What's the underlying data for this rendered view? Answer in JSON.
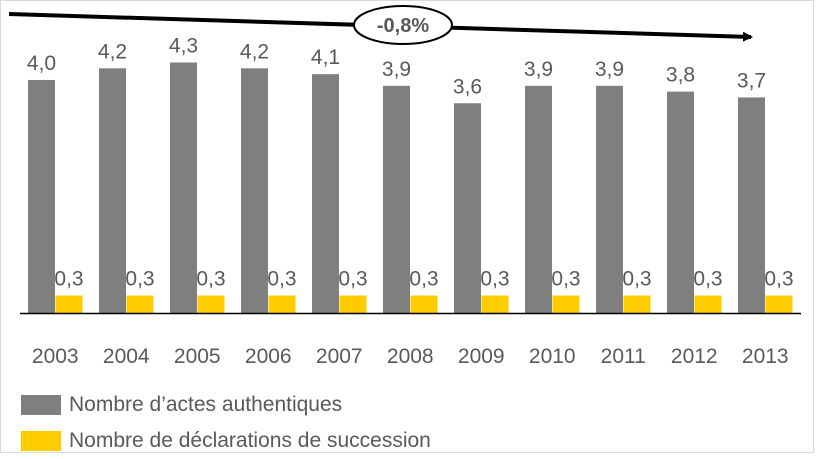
{
  "chart_data": {
    "type": "bar",
    "categories": [
      "2003",
      "2004",
      "2005",
      "2006",
      "2007",
      "2008",
      "2009",
      "2010",
      "2011",
      "2012",
      "2013"
    ],
    "series": [
      {
        "name": "Nombre d’actes authentiques",
        "color": "#7f7f7f",
        "values": [
          4.0,
          4.2,
          4.3,
          4.2,
          4.1,
          3.9,
          3.6,
          3.9,
          3.9,
          3.8,
          3.7
        ],
        "labels": [
          "4,0",
          "4,2",
          "4,3",
          "4,2",
          "4,1",
          "3,9",
          "3,6",
          "3,9",
          "3,9",
          "3,8",
          "3,7"
        ]
      },
      {
        "name": "Nombre de déclarations de succession",
        "color": "#ffcc00",
        "values": [
          0.3,
          0.3,
          0.3,
          0.3,
          0.3,
          0.3,
          0.3,
          0.3,
          0.3,
          0.3,
          0.3
        ],
        "labels": [
          "0,3",
          "0,3",
          "0,3",
          "0,3",
          "0,3",
          "0,3",
          "0,3",
          "0,3",
          "0,3",
          "0,3",
          "0,3"
        ]
      }
    ],
    "annotation": "-0,8%",
    "ylim": [
      0,
      4.6
    ],
    "grid": false,
    "legend_position": "bottom-left"
  }
}
